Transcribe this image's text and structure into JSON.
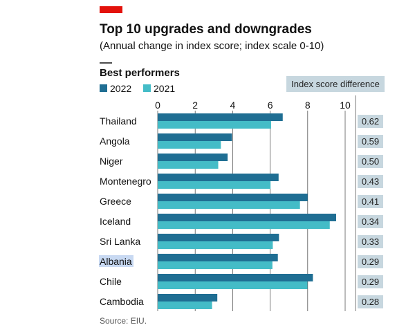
{
  "header": {
    "title": "Top 10 upgrades and downgrades",
    "subtitle": "(Annual change in index score; index scale 0-10)",
    "section": "Best performers",
    "diff_header": "Index score difference",
    "source": "Source: EIU."
  },
  "colors": {
    "accent": "#e3120b",
    "series_2022": "#1f6e93",
    "series_2021": "#44bcc7",
    "diff_box": "#c7d7df",
    "grid": "#555555"
  },
  "chart_data": {
    "type": "bar",
    "orientation": "horizontal",
    "categories": [
      "Thailand",
      "Angola",
      "Niger",
      "Montenegro",
      "Greece",
      "Iceland",
      "Sri Lanka",
      "Albania",
      "Chile",
      "Cambodia"
    ],
    "series": [
      {
        "name": "2022",
        "values": [
          6.67,
          3.96,
          3.73,
          6.45,
          8.0,
          9.52,
          6.47,
          6.41,
          8.28,
          3.18
        ]
      },
      {
        "name": "2021",
        "values": [
          6.05,
          3.37,
          3.23,
          6.02,
          7.59,
          9.18,
          6.14,
          6.12,
          7.99,
          2.9
        ]
      }
    ],
    "differences": [
      "0.62",
      "0.59",
      "0.50",
      "0.43",
      "0.41",
      "0.34",
      "0.33",
      "0.29",
      "0.29",
      "0.28"
    ],
    "xticks": [
      "0",
      "2",
      "4",
      "6",
      "8",
      "10"
    ],
    "xlim": [
      0,
      10
    ],
    "highlighted_category": "Albania",
    "legend_position": "top-left",
    "grid": true
  }
}
